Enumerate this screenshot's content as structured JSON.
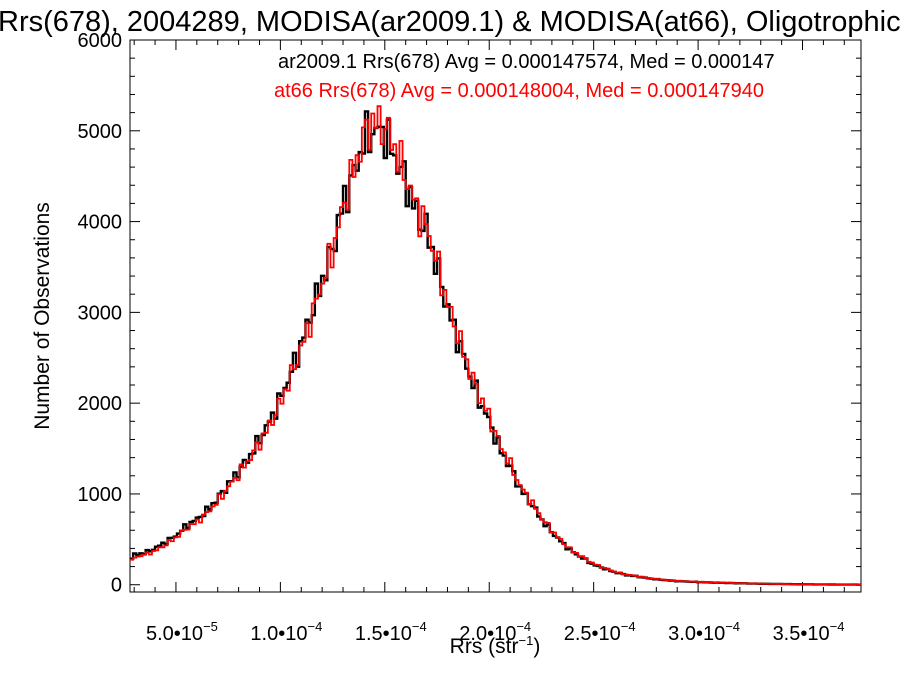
{
  "chart_data": {
    "type": "histogram",
    "title": "Rrs(678), 2004289, MODISA(ar2009.1) & MODISA(at66), Oligotrophic",
    "xlabel": "Rrs (str",
    "xlabel_sup": "−1",
    "xlabel_end": ")",
    "ylabel": "Number of Observations",
    "xlim": [
      2.8e-05,
      0.000378
    ],
    "ylim": [
      -80,
      6000
    ],
    "x_ticks": [
      {
        "value": 5e-05,
        "mant": "5.0•10",
        "exp": "−5"
      },
      {
        "value": 0.0001,
        "mant": "1.0•10",
        "exp": "−4"
      },
      {
        "value": 0.00015,
        "mant": "1.5•10",
        "exp": "−4"
      },
      {
        "value": 0.0002,
        "mant": "2.0•10",
        "exp": "−4"
      },
      {
        "value": 0.00025,
        "mant": "2.5•10",
        "exp": "−4"
      },
      {
        "value": 0.0003,
        "mant": "3.0•10",
        "exp": "−4"
      },
      {
        "value": 0.00035,
        "mant": "3.5•10",
        "exp": "−4"
      }
    ],
    "y_ticks": [
      {
        "value": 0,
        "label": "0"
      },
      {
        "value": 1000,
        "label": "1000"
      },
      {
        "value": 2000,
        "label": "2000"
      },
      {
        "value": 3000,
        "label": "3000"
      },
      {
        "value": 4000,
        "label": "4000"
      },
      {
        "value": 5000,
        "label": "5000"
      },
      {
        "value": 6000,
        "label": "6000"
      }
    ],
    "series": [
      {
        "name": "ar2009.1",
        "legend": "ar2009.1 Rrs(678) Avg = 0.000147574, Med = 0.000147",
        "color": "#000000",
        "points": [
          [
            2.8e-05,
            260
          ],
          [
            3e-05,
            330
          ],
          [
            3.5e-05,
            350
          ],
          [
            4e-05,
            400
          ],
          [
            4.5e-05,
            470
          ],
          [
            5e-05,
            540
          ],
          [
            5.5e-05,
            650
          ],
          [
            6e-05,
            720
          ],
          [
            6.5e-05,
            820
          ],
          [
            7e-05,
            950
          ],
          [
            7.5e-05,
            1100
          ],
          [
            8e-05,
            1250
          ],
          [
            8.5e-05,
            1400
          ],
          [
            9e-05,
            1600
          ],
          [
            9.5e-05,
            1800
          ],
          [
            0.0001,
            2050
          ],
          [
            0.000105,
            2330
          ],
          [
            0.00011,
            2650
          ],
          [
            0.000115,
            3000
          ],
          [
            0.00012,
            3350
          ],
          [
            0.000125,
            3700
          ],
          [
            0.00013,
            4200
          ],
          [
            0.000135,
            4500
          ],
          [
            0.00014,
            4900
          ],
          [
            0.000145,
            5000
          ],
          [
            0.00015,
            4980
          ],
          [
            0.000155,
            4700
          ],
          [
            0.00016,
            4450
          ],
          [
            0.000165,
            4100
          ],
          [
            0.00017,
            3900
          ],
          [
            0.000175,
            3500
          ],
          [
            0.00018,
            3050
          ],
          [
            0.000185,
            2700
          ],
          [
            0.00019,
            2350
          ],
          [
            0.000195,
            2050
          ],
          [
            0.0002,
            1800
          ],
          [
            0.000205,
            1500
          ],
          [
            0.00021,
            1300
          ],
          [
            0.000215,
            1050
          ],
          [
            0.00022,
            900
          ],
          [
            0.000225,
            720
          ],
          [
            0.00023,
            580
          ],
          [
            0.000235,
            460
          ],
          [
            0.00024,
            360
          ],
          [
            0.000245,
            290
          ],
          [
            0.00025,
            220
          ],
          [
            0.000255,
            180
          ],
          [
            0.00026,
            140
          ],
          [
            0.000265,
            110
          ],
          [
            0.00027,
            95
          ],
          [
            0.000275,
            75
          ],
          [
            0.00028,
            60
          ],
          [
            0.000285,
            50
          ],
          [
            0.00029,
            40
          ],
          [
            0.0003,
            30
          ],
          [
            0.00031,
            22
          ],
          [
            0.00032,
            16
          ],
          [
            0.00033,
            11
          ],
          [
            0.00034,
            8
          ],
          [
            0.00035,
            5
          ],
          [
            0.00036,
            3
          ],
          [
            0.00037,
            2
          ],
          [
            0.000378,
            1
          ]
        ]
      },
      {
        "name": "at66",
        "legend": "at66 Rrs(678) Avg = 0.000148004, Med = 0.000147940",
        "color": "#ff0000",
        "points": [
          [
            2.8e-05,
            240
          ],
          [
            3e-05,
            300
          ],
          [
            3.5e-05,
            330
          ],
          [
            4e-05,
            370
          ],
          [
            4.5e-05,
            440
          ],
          [
            5e-05,
            520
          ],
          [
            5.5e-05,
            620
          ],
          [
            6e-05,
            690
          ],
          [
            6.5e-05,
            790
          ],
          [
            7e-05,
            920
          ],
          [
            7.5e-05,
            1070
          ],
          [
            8e-05,
            1220
          ],
          [
            8.5e-05,
            1380
          ],
          [
            9e-05,
            1560
          ],
          [
            9.5e-05,
            1760
          ],
          [
            0.0001,
            2000
          ],
          [
            0.000105,
            2290
          ],
          [
            0.00011,
            2600
          ],
          [
            0.000115,
            2950
          ],
          [
            0.00012,
            3320
          ],
          [
            0.000125,
            3680
          ],
          [
            0.00013,
            4150
          ],
          [
            0.000135,
            4550
          ],
          [
            0.00014,
            4950
          ],
          [
            0.000145,
            5100
          ],
          [
            0.00015,
            5050
          ],
          [
            0.000155,
            4800
          ],
          [
            0.00016,
            4500
          ],
          [
            0.000165,
            4150
          ],
          [
            0.00017,
            3950
          ],
          [
            0.000175,
            3550
          ],
          [
            0.00018,
            3100
          ],
          [
            0.000185,
            2750
          ],
          [
            0.00019,
            2400
          ],
          [
            0.000195,
            2100
          ],
          [
            0.0002,
            1850
          ],
          [
            0.000205,
            1550
          ],
          [
            0.00021,
            1330
          ],
          [
            0.000215,
            1080
          ],
          [
            0.00022,
            920
          ],
          [
            0.000225,
            740
          ],
          [
            0.00023,
            600
          ],
          [
            0.000235,
            470
          ],
          [
            0.00024,
            370
          ],
          [
            0.000245,
            300
          ],
          [
            0.00025,
            230
          ],
          [
            0.000255,
            185
          ],
          [
            0.00026,
            145
          ],
          [
            0.000265,
            115
          ],
          [
            0.00027,
            98
          ],
          [
            0.000275,
            78
          ],
          [
            0.00028,
            62
          ],
          [
            0.000285,
            52
          ],
          [
            0.00029,
            42
          ],
          [
            0.0003,
            32
          ],
          [
            0.00031,
            23
          ],
          [
            0.00032,
            17
          ],
          [
            0.00033,
            12
          ],
          [
            0.00034,
            8
          ],
          [
            0.00035,
            5
          ],
          [
            0.00036,
            3
          ],
          [
            0.00037,
            2
          ],
          [
            0.000378,
            1
          ]
        ]
      }
    ]
  }
}
